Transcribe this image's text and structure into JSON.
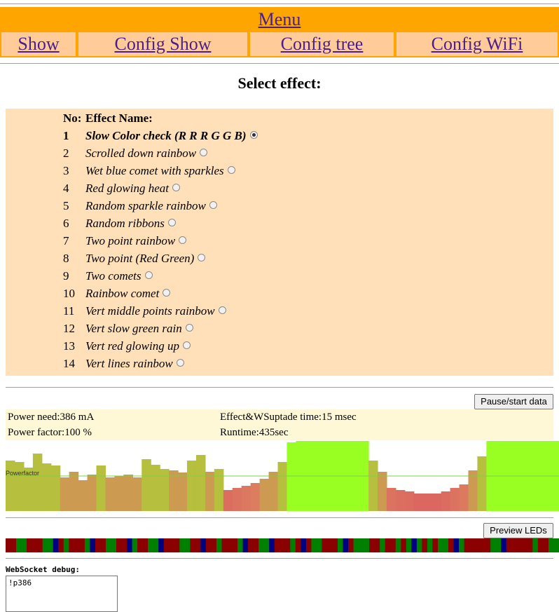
{
  "menu": {
    "title": "Menu",
    "items": [
      {
        "label": "Show"
      },
      {
        "label": "Config Show"
      },
      {
        "label": "Config tree"
      },
      {
        "label": "Config WiFi"
      }
    ]
  },
  "page_title": "Select effect:",
  "effects": {
    "header_no": "No:",
    "header_name": "Effect Name:",
    "selected": 1,
    "items": [
      {
        "no": "1",
        "name": "Slow Color check (R R R G G B)"
      },
      {
        "no": "2",
        "name": "Scrolled down rainbow"
      },
      {
        "no": "3",
        "name": "Wet blue comet with sparkles"
      },
      {
        "no": "4",
        "name": "Red glowing heat"
      },
      {
        "no": "5",
        "name": "Random sparkle rainbow"
      },
      {
        "no": "6",
        "name": "Random ribbons"
      },
      {
        "no": "7",
        "name": "Two point rainbow"
      },
      {
        "no": "8",
        "name": "Two point (Red Green)"
      },
      {
        "no": "9",
        "name": "Two comets"
      },
      {
        "no": "10",
        "name": "Rainbow comet"
      },
      {
        "no": "11",
        "name": "Vert middle points rainbow"
      },
      {
        "no": "12",
        "name": "Vert slow green rain"
      },
      {
        "no": "13",
        "name": "Vert red glowing up"
      },
      {
        "no": "14",
        "name": "Vert lines rainbow"
      }
    ]
  },
  "buttons": {
    "pause": "Pause/start data",
    "preview": "Preview LEDs"
  },
  "stats": {
    "power_need": "Power need:386 mA",
    "power_factor": "Power factor:100 %",
    "update_time": "Effect&WSuptade time:15 msec",
    "runtime": "Runtime:435sec"
  },
  "chart_data": {
    "type": "bar",
    "series_label": "Powerfactor",
    "reference_line": 0.5,
    "values": [
      0.72,
      0.7,
      0.62,
      0.82,
      0.68,
      0.65,
      0.48,
      0.56,
      0.44,
      0.52,
      0.65,
      0.48,
      0.5,
      0.52,
      0.48,
      0.74,
      0.66,
      0.6,
      0.58,
      0.55,
      0.72,
      0.8,
      0.56,
      0.6,
      0.3,
      0.33,
      0.36,
      0.4,
      0.46,
      0.56,
      0.7,
      0.98,
      1.0,
      1.0,
      1.0,
      1.0,
      1.0,
      1.0,
      1.0,
      1.0,
      0.72,
      0.56,
      0.33,
      0.3,
      0.28,
      0.25,
      0.25,
      0.25,
      0.28,
      0.33,
      0.38,
      0.58,
      0.78,
      1.0,
      1.0,
      1.0,
      1.0,
      1.0,
      1.0,
      1.0,
      1.0
    ]
  },
  "led_colors": [
    "#8b0000",
    "#8b0000",
    "#008000",
    "#008000",
    "#8b0000",
    "#8b0000",
    "#8b0000",
    "#008000",
    "#008000",
    "#000080",
    "#8b0000",
    "#008000",
    "#8b0000",
    "#8b0000",
    "#8b0000",
    "#008000",
    "#000080",
    "#8b0000",
    "#8b0000",
    "#008000",
    "#008000",
    "#8b0000",
    "#8b0000",
    "#000080",
    "#008000",
    "#8b0000",
    "#8b0000",
    "#008000",
    "#008000",
    "#000080",
    "#8b0000",
    "#8b0000",
    "#8b0000",
    "#008000",
    "#008000",
    "#8b0000",
    "#8b0000",
    "#000080",
    "#8b0000",
    "#8b0000",
    "#008000",
    "#8b0000",
    "#8b0000",
    "#8b0000",
    "#008000",
    "#000080",
    "#8b0000",
    "#8b0000",
    "#008000",
    "#008000",
    "#000080",
    "#8b0000",
    "#8b0000",
    "#8b0000",
    "#008000",
    "#8b0000",
    "#000080",
    "#8b0000",
    "#008000",
    "#008000",
    "#8b0000",
    "#8b0000",
    "#8b0000",
    "#008000",
    "#000080",
    "#8b0000",
    "#008000",
    "#008000",
    "#008000",
    "#8b0000",
    "#8b0000",
    "#008000",
    "#8b0000",
    "#8b0000",
    "#008000",
    "#8b0000",
    "#008000",
    "#000080",
    "#008000",
    "#8b0000",
    "#008000",
    "#8b0000",
    "#008000",
    "#008000",
    "#8b0000",
    "#000080",
    "#008000",
    "#8b0000",
    "#8b0000",
    "#8b0000",
    "#8b0000",
    "#8b0000",
    "#008000",
    "#008000",
    "#000080",
    "#8b0000",
    "#8b0000",
    "#8b0000",
    "#8b0000",
    "#8b0000",
    "#008000",
    "#8b0000",
    "#8b0000",
    "#008000",
    "#008000"
  ],
  "debug": {
    "label": "WebSocket debug:",
    "text": "!p386"
  }
}
